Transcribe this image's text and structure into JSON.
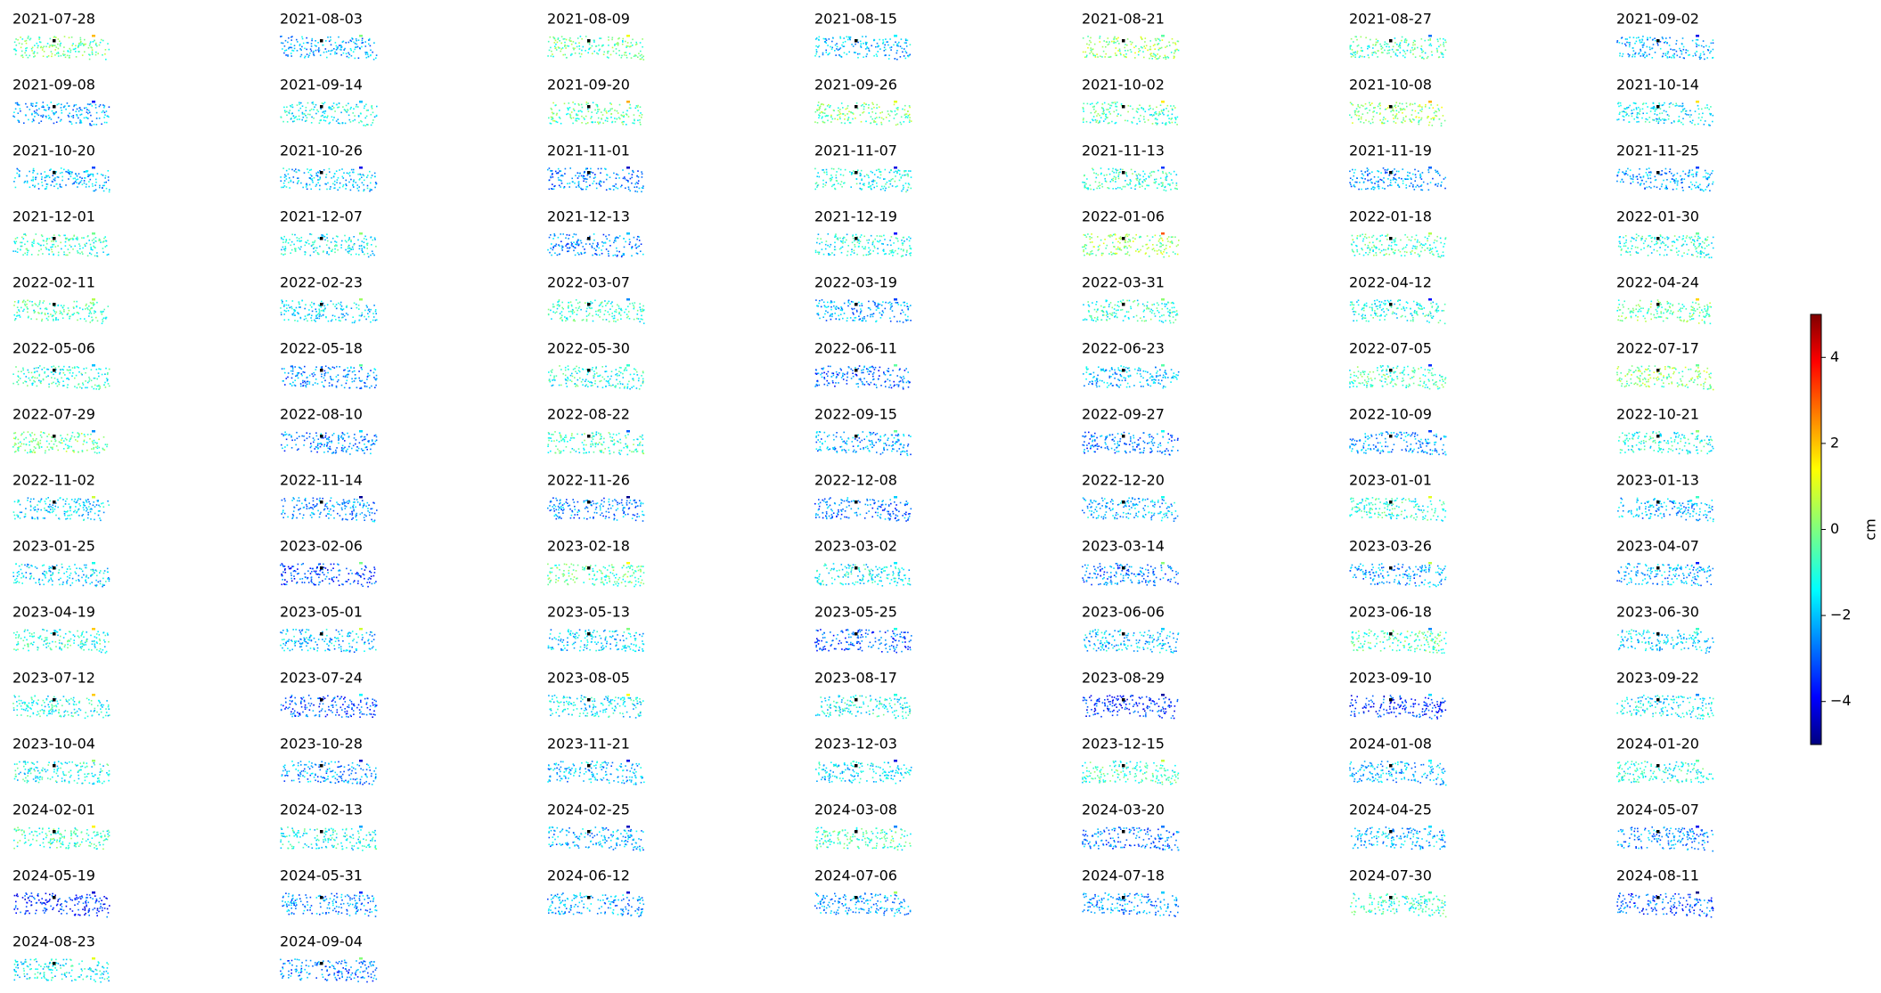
{
  "panels": [
    "2021-07-28",
    "2021-08-03",
    "2021-08-09",
    "2021-08-15",
    "2021-08-21",
    "2021-08-27",
    "2021-09-02",
    "2021-09-08",
    "2021-09-14",
    "2021-09-20",
    "2021-09-26",
    "2021-10-02",
    "2021-10-08",
    "2021-10-14",
    "2021-10-20",
    "2021-10-26",
    "2021-11-01",
    "2021-11-07",
    "2021-11-13",
    "2021-11-19",
    "2021-11-25",
    "2021-12-01",
    "2021-12-07",
    "2021-12-13",
    "2021-12-19",
    "2022-01-06",
    "2022-01-18",
    "2022-01-30",
    "2022-02-11",
    "2022-02-23",
    "2022-03-07",
    "2022-03-19",
    "2022-03-31",
    "2022-04-12",
    "2022-04-24",
    "2022-05-06",
    "2022-05-18",
    "2022-05-30",
    "2022-06-11",
    "2022-06-23",
    "2022-07-05",
    "2022-07-17",
    "2022-07-29",
    "2022-08-10",
    "2022-08-22",
    "2022-09-15",
    "2022-09-27",
    "2022-10-09",
    "2022-10-21",
    "2022-11-02",
    "2022-11-14",
    "2022-11-26",
    "2022-12-08",
    "2022-12-20",
    "2023-01-01",
    "2023-01-13",
    "2023-01-25",
    "2023-02-06",
    "2023-02-18",
    "2023-03-02",
    "2023-03-14",
    "2023-03-26",
    "2023-04-07",
    "2023-04-19",
    "2023-05-01",
    "2023-05-13",
    "2023-05-25",
    "2023-06-06",
    "2023-06-18",
    "2023-06-30",
    "2023-07-12",
    "2023-07-24",
    "2023-08-05",
    "2023-08-17",
    "2023-08-29",
    "2023-09-10",
    "2023-09-22",
    "2023-10-04",
    "2023-10-28",
    "2023-11-21",
    "2023-12-03",
    "2023-12-15",
    "2024-01-08",
    "2024-01-20",
    "2024-02-01",
    "2024-02-13",
    "2024-02-25",
    "2024-03-08",
    "2024-03-20",
    "2024-04-25",
    "2024-05-07",
    "2024-05-19",
    "2024-05-31",
    "2024-06-12",
    "2024-07-06",
    "2024-07-18",
    "2024-07-30",
    "2024-08-11",
    "2024-08-23",
    "2024-09-04"
  ],
  "colorbar": {
    "label": "cm",
    "lim": [
      -5,
      5
    ],
    "ticks": [
      {
        "value": -4,
        "label": "−4"
      },
      {
        "value": -2,
        "label": "−2"
      },
      0,
      2,
      4
    ]
  }
}
